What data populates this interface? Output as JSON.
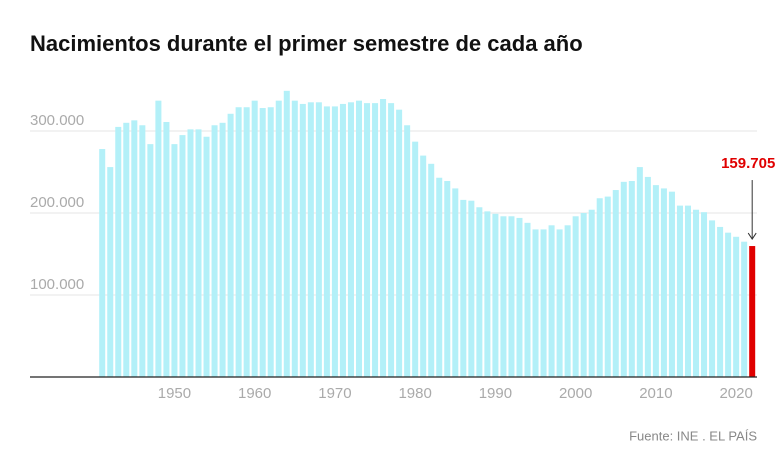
{
  "chart_data": {
    "type": "bar",
    "title": "Nacimientos durante el primer semestre de cada año",
    "source": "Fuente: INE . EL PAÍS",
    "x": [
      1941,
      1942,
      1943,
      1944,
      1945,
      1946,
      1947,
      1948,
      1949,
      1950,
      1951,
      1952,
      1953,
      1954,
      1955,
      1956,
      1957,
      1958,
      1959,
      1960,
      1961,
      1962,
      1963,
      1964,
      1965,
      1966,
      1967,
      1968,
      1969,
      1970,
      1971,
      1972,
      1973,
      1974,
      1975,
      1976,
      1977,
      1978,
      1979,
      1980,
      1981,
      1982,
      1983,
      1984,
      1985,
      1986,
      1987,
      1988,
      1989,
      1990,
      1991,
      1992,
      1993,
      1994,
      1995,
      1996,
      1997,
      1998,
      1999,
      2000,
      2001,
      2002,
      2003,
      2004,
      2005,
      2006,
      2007,
      2008,
      2009,
      2010,
      2011,
      2012,
      2013,
      2014,
      2015,
      2016,
      2017,
      2018,
      2019,
      2020,
      2021,
      2022
    ],
    "values": [
      278000,
      256000,
      305000,
      310000,
      313000,
      307000,
      284000,
      337000,
      311000,
      284000,
      295000,
      302000,
      302000,
      293000,
      307000,
      310000,
      321000,
      329000,
      329000,
      337000,
      328000,
      329000,
      337000,
      349000,
      337000,
      333000,
      335000,
      335000,
      330000,
      330000,
      333000,
      335000,
      337000,
      334000,
      334000,
      339000,
      334000,
      326000,
      307000,
      287000,
      270000,
      260000,
      243000,
      239000,
      230000,
      216000,
      215000,
      207000,
      202000,
      199000,
      196000,
      196000,
      194000,
      188000,
      180000,
      180000,
      185000,
      180000,
      185000,
      196000,
      200000,
      204000,
      218000,
      220000,
      228000,
      238000,
      239000,
      256000,
      244000,
      234000,
      230000,
      226000,
      209000,
      209000,
      204000,
      201000,
      191000,
      183000,
      176000,
      171000,
      165000,
      159705
    ],
    "value_labels": [
      null,
      null,
      null,
      null,
      null,
      null,
      null,
      null,
      null,
      null,
      null,
      null,
      null,
      null,
      null,
      null,
      null,
      null,
      null,
      null,
      null,
      null,
      null,
      null,
      null,
      null,
      null,
      null,
      null,
      null,
      null,
      null,
      null,
      null,
      null,
      null,
      null,
      null,
      null,
      null,
      null,
      null,
      null,
      null,
      null,
      null,
      null,
      null,
      null,
      null,
      null,
      null,
      null,
      null,
      null,
      null,
      null,
      null,
      null,
      null,
      null,
      null,
      null,
      null,
      null,
      null,
      null,
      null,
      null,
      null,
      null,
      null,
      null,
      null,
      null,
      null,
      null,
      null,
      null,
      null,
      null,
      "159.705"
    ],
    "color": "#b3f0f8",
    "highlight_color": "#e00000",
    "xlim": [
      1932,
      2022.6
    ],
    "xticks": [
      1950,
      1960,
      1970,
      1980,
      1990,
      2000,
      2010,
      2020
    ],
    "ylim": [
      0,
      400000
    ],
    "yticks": [
      {
        "value": 100000,
        "label": "100.000"
      },
      {
        "value": 200000,
        "label": "200.000"
      },
      {
        "value": 300000,
        "label": "300.000"
      }
    ],
    "grid": true
  }
}
